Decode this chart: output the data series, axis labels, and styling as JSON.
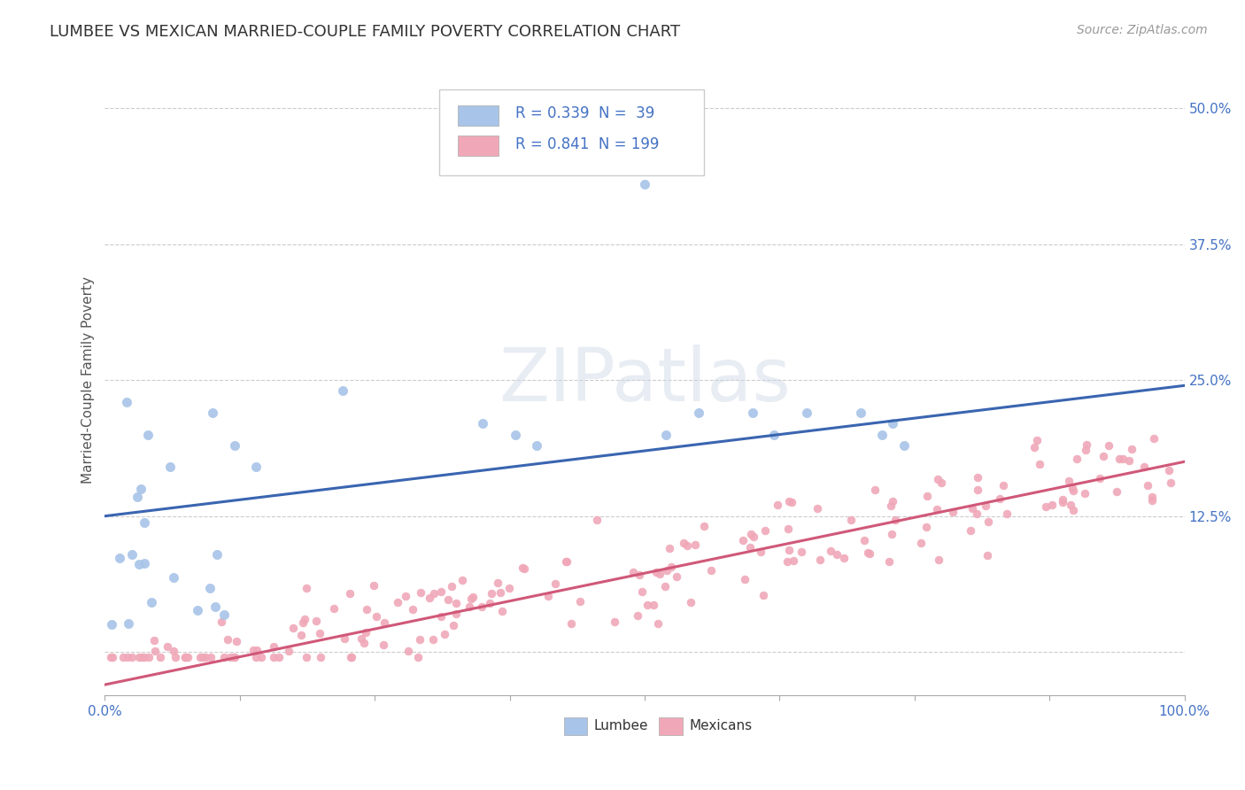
{
  "title": "LUMBEE VS MEXICAN MARRIED-COUPLE FAMILY POVERTY CORRELATION CHART",
  "source": "Source: ZipAtlas.com",
  "ylabel": "Married-Couple Family Poverty",
  "xlim": [
    0,
    1.0
  ],
  "ylim": [
    -0.04,
    0.54
  ],
  "lumbee_n": 39,
  "mexican_n": 199,
  "lumbee_color": "#a8c4e8",
  "mexican_color": "#f0a8b8",
  "lumbee_line_color": "#3a65b0",
  "mexican_line_color": "#d05878",
  "legend_text_color": "#4472c4",
  "watermark": "ZIPatlas",
  "xticks": [
    0.0,
    0.125,
    0.25,
    0.375,
    0.5,
    0.625,
    0.75,
    0.875,
    1.0
  ],
  "xtick_labels": [
    "0.0%",
    "",
    "",
    "",
    "",
    "",
    "",
    "",
    "100.0%"
  ],
  "yticks": [
    0.0,
    0.125,
    0.25,
    0.375,
    0.5
  ],
  "ytick_labels_map": {
    "0.0": "",
    "0.125": "12.5%",
    "0.25": "25.0%",
    "0.375": "37.5%",
    "0.5": "50.0%"
  },
  "background_color": "#ffffff",
  "grid_color": "#cccccc",
  "title_fontsize": 13,
  "axis_label_fontsize": 11,
  "tick_fontsize": 11,
  "lumbee_line_intercept": 0.125,
  "lumbee_line_slope": 0.125,
  "mexican_line_intercept": -0.03,
  "mexican_line_slope": 0.2
}
